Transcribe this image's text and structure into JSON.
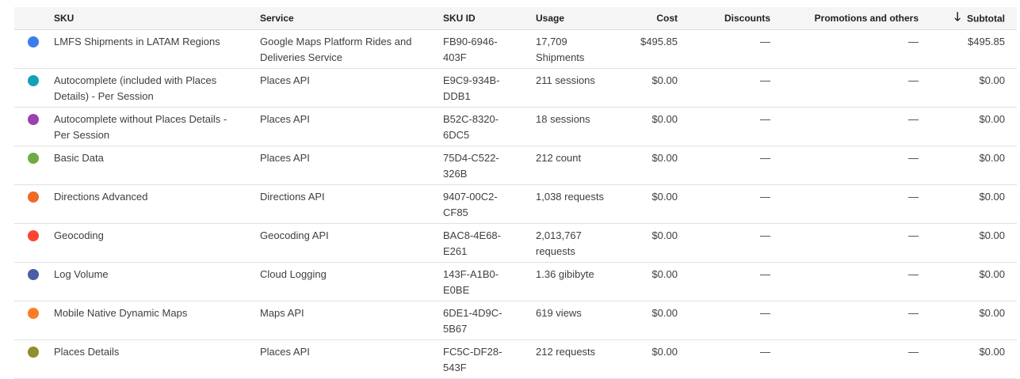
{
  "headers": {
    "sku": "SKU",
    "service": "Service",
    "sku_id": "SKU ID",
    "usage": "Usage",
    "cost": "Cost",
    "discounts": "Discounts",
    "promotions": "Promotions and others",
    "subtotal": "Subtotal",
    "sort_icon": "arrow-down-icon"
  },
  "rows": [
    {
      "color": "#3b7ded",
      "sku": "LMFS Shipments in LATAM Regions",
      "service": "Google Maps Platform Rides and Deliveries Service",
      "sku_id": "FB90-6946-403F",
      "usage": "17,709 Shipments",
      "cost": "$495.85",
      "discounts": "—",
      "promotions": "—",
      "subtotal": "$495.85"
    },
    {
      "color": "#12a2b8",
      "sku": "Autocomplete (included with Places Details) - Per Session",
      "service": "Places API",
      "sku_id": "E9C9-934B-DDB1",
      "usage": "211 sessions",
      "cost": "$0.00",
      "discounts": "—",
      "promotions": "—",
      "subtotal": "$0.00"
    },
    {
      "color": "#9c3fb0",
      "sku": "Autocomplete without Places Details - Per Session",
      "service": "Places API",
      "sku_id": "B52C-8320-6DC5",
      "usage": "18 sessions",
      "cost": "$0.00",
      "discounts": "—",
      "promotions": "—",
      "subtotal": "$0.00"
    },
    {
      "color": "#71aa44",
      "sku": "Basic Data",
      "service": "Places API",
      "sku_id": "75D4-C522-326B",
      "usage": "212 count",
      "cost": "$0.00",
      "discounts": "—",
      "promotions": "—",
      "subtotal": "$0.00"
    },
    {
      "color": "#f06a24",
      "sku": "Directions Advanced",
      "service": "Directions API",
      "sku_id": "9407-00C2-CF85",
      "usage": "1,038 requests",
      "cost": "$0.00",
      "discounts": "—",
      "promotions": "—",
      "subtotal": "$0.00"
    },
    {
      "color": "#fc4530",
      "sku": "Geocoding",
      "service": "Geocoding API",
      "sku_id": "BAC8-4E68-E261",
      "usage": "2,013,767 requests",
      "cost": "$0.00",
      "discounts": "—",
      "promotions": "—",
      "subtotal": "$0.00"
    },
    {
      "color": "#4a5ea8",
      "sku": "Log Volume",
      "service": "Cloud Logging",
      "sku_id": "143F-A1B0-E0BE",
      "usage": "1.36 gibibyte",
      "cost": "$0.00",
      "discounts": "—",
      "promotions": "—",
      "subtotal": "$0.00"
    },
    {
      "color": "#fd7b24",
      "sku": "Mobile Native Dynamic Maps",
      "service": "Maps API",
      "sku_id": "6DE1-4D9C-5B67",
      "usage": "619 views",
      "cost": "$0.00",
      "discounts": "—",
      "promotions": "—",
      "subtotal": "$0.00"
    },
    {
      "color": "#8f8d2e",
      "sku": "Places Details",
      "service": "Places API",
      "sku_id": "FC5C-DF28-543F",
      "usage": "212 requests",
      "cost": "$0.00",
      "discounts": "—",
      "promotions": "—",
      "subtotal": "$0.00"
    }
  ]
}
